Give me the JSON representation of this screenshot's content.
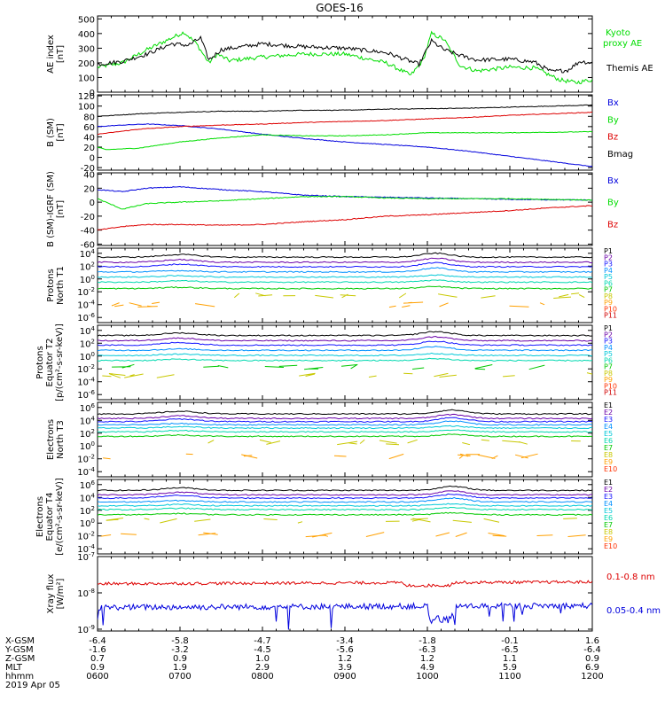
{
  "title": "GOES-16",
  "x_ticks": [
    "0600",
    "0700",
    "0800",
    "0900",
    "1000",
    "1100",
    "1200"
  ],
  "date": "2019 Apr 05",
  "ephemeris": [
    {
      "label": "X-GSM",
      "values": [
        "-6.4",
        "-5.8",
        "-4.7",
        "-3.4",
        "-1.8",
        "-0.1",
        "1.6"
      ]
    },
    {
      "label": "Y-GSM",
      "values": [
        "-1.6",
        "-3.2",
        "-4.5",
        "-5.6",
        "-6.3",
        "-6.5",
        "-6.4"
      ]
    },
    {
      "label": "Z-GSM",
      "values": [
        "0.7",
        "0.9",
        "1.0",
        "1.2",
        "1.2",
        "1.1",
        "0.9"
      ]
    },
    {
      "label": "MLT",
      "values": [
        "0.9",
        "1.9",
        "2.9",
        "3.9",
        "4.9",
        "5.9",
        "6.9"
      ]
    },
    {
      "label": "hhmm",
      "values": [
        "0600",
        "0700",
        "0800",
        "0900",
        "1000",
        "1100",
        "1200"
      ]
    }
  ],
  "colors": {
    "black": "#000000",
    "green": "#00dd00",
    "red": "#dd0000",
    "blue": "#0000dd",
    "spectrum": [
      "#000000",
      "#6a00a8",
      "#1414ff",
      "#0090ff",
      "#00c8d8",
      "#00d8b0",
      "#00c800",
      "#c8c800",
      "#ffa000",
      "#ff3000",
      "#d00000"
    ]
  },
  "chart_data": [
    {
      "type": "line",
      "id": "ae",
      "ylabel": [
        "AE index",
        "[nT]"
      ],
      "yticks": [
        "500",
        "400",
        "300",
        "200",
        "100",
        "0"
      ],
      "ylim": [
        0,
        520
      ],
      "log": false,
      "legend": [
        {
          "text": "Kyoto",
          "color": "green"
        },
        {
          "text": "proxy AE",
          "color": "green"
        },
        {
          "text": "Themis AE",
          "color": "black"
        }
      ],
      "series": [
        {
          "name": "Kyoto proxy AE",
          "color": "green",
          "x": [
            6.0,
            6.3,
            6.6,
            6.9,
            7.05,
            7.2,
            7.35,
            7.45,
            7.6,
            8.0,
            8.5,
            9.0,
            9.5,
            9.8,
            9.95,
            10.05,
            10.2,
            10.4,
            10.6,
            11.0,
            11.3,
            11.6,
            11.8,
            12.0
          ],
          "y": [
            170,
            200,
            290,
            370,
            410,
            330,
            200,
            260,
            215,
            240,
            260,
            260,
            200,
            115,
            220,
            400,
            360,
            180,
            145,
            170,
            165,
            85,
            65,
            85
          ]
        },
        {
          "name": "Themis AE",
          "color": "black",
          "x": [
            6.0,
            6.3,
            6.6,
            6.9,
            7.1,
            7.25,
            7.35,
            7.5,
            8.0,
            8.5,
            9.0,
            9.5,
            9.9,
            10.05,
            10.2,
            10.4,
            10.6,
            11.0,
            11.3,
            11.5,
            11.7,
            11.85,
            12.0
          ],
          "y": [
            190,
            210,
            260,
            330,
            320,
            370,
            220,
            290,
            330,
            310,
            300,
            270,
            190,
            350,
            290,
            250,
            220,
            225,
            205,
            140,
            150,
            210,
            200
          ]
        }
      ]
    },
    {
      "type": "line",
      "id": "bsm",
      "ylabel": [
        "B (SM)",
        "[nT]"
      ],
      "yticks": [
        "120",
        "100",
        "80",
        "60",
        "40",
        "20",
        "0",
        "-20"
      ],
      "ylim": [
        -25,
        122
      ],
      "log": false,
      "legend": [
        {
          "text": "Bx",
          "color": "blue"
        },
        {
          "text": "By",
          "color": "green"
        },
        {
          "text": "Bz",
          "color": "red"
        },
        {
          "text": "Bmag",
          "color": "black"
        }
      ],
      "series": [
        {
          "name": "Bmag",
          "color": "black",
          "x": [
            6.0,
            6.5,
            7.0,
            7.5,
            8.0,
            8.5,
            9.0,
            9.5,
            10.0,
            10.5,
            11.0,
            11.5,
            12.0
          ],
          "y": [
            80,
            85,
            88,
            90,
            90,
            92,
            92,
            94,
            95,
            96,
            98,
            100,
            102
          ]
        },
        {
          "name": "Bx",
          "color": "blue",
          "x": [
            6.0,
            6.3,
            6.6,
            7.0,
            7.5,
            8.0,
            8.5,
            9.0,
            9.5,
            10.0,
            10.5,
            11.0,
            11.5,
            12.0
          ],
          "y": [
            60,
            63,
            65,
            62,
            55,
            45,
            37,
            30,
            25,
            20,
            12,
            2,
            -8,
            -18
          ]
        },
        {
          "name": "By",
          "color": "green",
          "x": [
            6.0,
            6.1,
            6.5,
            7.0,
            7.5,
            8.0,
            8.5,
            9.0,
            9.5,
            10.0,
            11.0,
            12.0
          ],
          "y": [
            20,
            15,
            18,
            30,
            38,
            44,
            42,
            42,
            44,
            48,
            48,
            50
          ]
        },
        {
          "name": "Bz",
          "color": "red",
          "x": [
            6.0,
            6.5,
            7.0,
            7.5,
            8.0,
            8.5,
            9.0,
            9.5,
            10.0,
            10.5,
            11.0,
            11.5,
            12.0
          ],
          "y": [
            45,
            55,
            60,
            63,
            65,
            68,
            70,
            72,
            75,
            78,
            82,
            85,
            88
          ]
        }
      ]
    },
    {
      "type": "line",
      "id": "bres",
      "ylabel": [
        "B (SM)-IGRF (SM)",
        "[nT]"
      ],
      "yticks": [
        "40",
        "20",
        "0",
        "-20",
        "-40",
        "-60"
      ],
      "ylim": [
        -62,
        42
      ],
      "log": false,
      "legend": [
        {
          "text": "Bx",
          "color": "blue"
        },
        {
          "text": "By",
          "color": "green"
        },
        {
          "text": "Bz",
          "color": "red"
        }
      ],
      "series": [
        {
          "name": "Bx",
          "color": "blue",
          "x": [
            6.0,
            6.3,
            6.6,
            7.0,
            7.5,
            8.0,
            8.5,
            9.0,
            9.5,
            10.0,
            10.5,
            11.0,
            12.0
          ],
          "y": [
            18,
            15,
            20,
            22,
            18,
            15,
            10,
            8,
            7,
            6,
            5,
            4,
            3
          ]
        },
        {
          "name": "By",
          "color": "green",
          "x": [
            6.0,
            6.3,
            6.6,
            7.0,
            7.5,
            8.0,
            8.5,
            9.0,
            9.5,
            10.0,
            11.0,
            12.0
          ],
          "y": [
            5,
            -10,
            -2,
            0,
            2,
            5,
            8,
            8,
            6,
            5,
            5,
            3
          ]
        },
        {
          "name": "Bz",
          "color": "red",
          "x": [
            6.0,
            6.3,
            6.6,
            7.0,
            7.5,
            8.0,
            8.5,
            9.0,
            9.5,
            10.0,
            10.5,
            11.0,
            11.5,
            12.0
          ],
          "y": [
            -40,
            -35,
            -32,
            -32,
            -33,
            -32,
            -28,
            -25,
            -20,
            -18,
            -15,
            -12,
            -8,
            -5
          ]
        }
      ]
    },
    {
      "type": "line",
      "id": "pnt1",
      "ylabel": [
        "Protons",
        "North T1"
      ],
      "yticks": [
        "10^4",
        "10^2",
        "10^0",
        "10^-2",
        "10^-4",
        "10^-6"
      ],
      "ylim": [
        -6.8,
        4.8
      ],
      "log": true,
      "legend": [
        {
          "text": "P1",
          "color": "black"
        },
        {
          "text": "P2",
          "color": "purple"
        },
        {
          "text": "P3",
          "color": "blue"
        },
        {
          "text": "P4",
          "color": "blue"
        },
        {
          "text": "P5",
          "color": "cyan"
        },
        {
          "text": "P6",
          "color": "teal"
        },
        {
          "text": "P7",
          "color": "green"
        },
        {
          "text": "P8",
          "color": "yellow"
        },
        {
          "text": "P9",
          "color": "orange"
        },
        {
          "text": "P10",
          "color": "red"
        },
        {
          "text": "P11",
          "color": "red"
        }
      ],
      "levels": [
        3.4,
        2.6,
        1.9,
        1.1,
        0.3,
        -0.5,
        -1.5,
        -2.6,
        -4.0
      ],
      "bump_at": 10.1
    },
    {
      "type": "line",
      "id": "peqt2",
      "ylabel": [
        "Protons",
        "Equator T2",
        "[p/(cm²-s-sr-keV)]"
      ],
      "yticks": [
        "10^4",
        "10^2",
        "10^0",
        "10^-2",
        "10^-4",
        "10^-6"
      ],
      "ylim": [
        -6.8,
        4.8
      ],
      "log": true,
      "legend": [
        {
          "text": "P1",
          "color": "black"
        },
        {
          "text": "P2",
          "color": "purple"
        },
        {
          "text": "P3",
          "color": "blue"
        },
        {
          "text": "P4",
          "color": "blue"
        },
        {
          "text": "P5",
          "color": "cyan"
        },
        {
          "text": "P6",
          "color": "teal"
        },
        {
          "text": "P7",
          "color": "green"
        },
        {
          "text": "P8",
          "color": "yellow"
        },
        {
          "text": "P9",
          "color": "orange"
        },
        {
          "text": "P10",
          "color": "red"
        },
        {
          "text": "P11",
          "color": "red"
        }
      ],
      "levels": [
        3.2,
        2.4,
        1.7,
        0.9,
        0.1,
        -0.7,
        -1.7,
        -3.0
      ],
      "bump_at": 10.1
    },
    {
      "type": "line",
      "id": "ent3",
      "ylabel": [
        "Electrons",
        "North T3"
      ],
      "yticks": [
        "10^6",
        "10^4",
        "10^2",
        "10^0",
        "10^-2",
        "10^-4"
      ],
      "ylim": [
        -4.8,
        6.8
      ],
      "log": true,
      "legend": [
        {
          "text": "E1",
          "color": "black"
        },
        {
          "text": "E2",
          "color": "purple"
        },
        {
          "text": "E3",
          "color": "blue"
        },
        {
          "text": "E4",
          "color": "cyan"
        },
        {
          "text": "E5",
          "color": "teal"
        },
        {
          "text": "E6",
          "color": "green"
        },
        {
          "text": "E7",
          "color": "yellow"
        },
        {
          "text": "E8",
          "color": "orange"
        },
        {
          "text": "E9",
          "color": "red"
        },
        {
          "text": "E10",
          "color": "red"
        }
      ],
      "levels": [
        5.0,
        4.3,
        3.8,
        3.3,
        2.8,
        2.2,
        1.5,
        0.6,
        -1.6
      ],
      "bump_at": 10.3
    },
    {
      "type": "line",
      "id": "eeqt4",
      "ylabel": [
        "Electrons",
        "Equator T4",
        "[e/(cm²-s-sr-keV)]"
      ],
      "yticks": [
        "10^6",
        "10^4",
        "10^2",
        "10^0",
        "10^-2",
        "10^-4"
      ],
      "ylim": [
        -4.8,
        6.8
      ],
      "log": true,
      "legend": [
        {
          "text": "E1",
          "color": "black"
        },
        {
          "text": "E2",
          "color": "purple"
        },
        {
          "text": "E3",
          "color": "blue"
        },
        {
          "text": "E4",
          "color": "cyan"
        },
        {
          "text": "E5",
          "color": "teal"
        },
        {
          "text": "E6",
          "color": "green"
        },
        {
          "text": "E7",
          "color": "yellow"
        },
        {
          "text": "E8",
          "color": "orange"
        },
        {
          "text": "E9",
          "color": "red"
        },
        {
          "text": "E10",
          "color": "red"
        }
      ],
      "levels": [
        5.1,
        4.4,
        3.9,
        3.3,
        2.7,
        2.1,
        1.3,
        0.4,
        -1.8
      ],
      "bump_at": 10.3
    },
    {
      "type": "line",
      "id": "xray",
      "ylabel": [
        "Xray flux",
        "[W/m²]"
      ],
      "yticks": [
        "10^-7",
        "10^-8",
        "10^-9"
      ],
      "ylim": [
        -9.05,
        -7.0
      ],
      "log": true,
      "legend": [
        {
          "text": "0.1-0.8 nm",
          "color": "red"
        },
        {
          "text": "0.05-0.4 nm",
          "color": "blue"
        }
      ],
      "series": [
        {
          "name": "0.1-0.8 nm",
          "color": "red",
          "x": [
            6.0,
            12.0
          ],
          "y": [
            -7.75,
            -7.7
          ]
        },
        {
          "name": "0.05-0.4 nm",
          "color": "blue",
          "x": [
            6.0,
            12.0
          ],
          "y": [
            -8.4,
            -8.35
          ]
        }
      ]
    }
  ]
}
